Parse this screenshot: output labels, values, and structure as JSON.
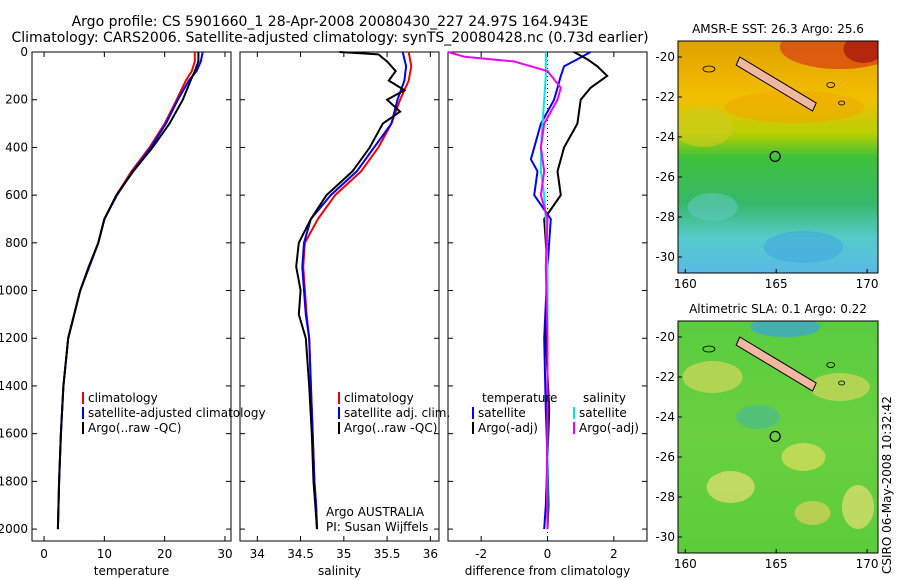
{
  "header": {
    "title_line1": "Argo profile: CS 5901660_1 28-Apr-2008 20080430_227 24.97S 164.943E",
    "title_line2": "Climatology: CARS2006. Satellite-adjusted climatology: synTS_20080428.nc (0.73d earlier)"
  },
  "footer": {
    "stamp": "CSIRO 06-May-2008 10:32:42"
  },
  "colors": {
    "red": "#ee0000",
    "blue": "#0000ee",
    "black": "#000000",
    "cyan": "#00e5ee",
    "magenta": "#ee00ee"
  },
  "chart_data": [
    {
      "type": "line",
      "xlabel": "temperature",
      "ylabel": "",
      "xlim": [
        -2,
        31
      ],
      "ylim": [
        2050,
        0
      ],
      "xticks": [
        0,
        10,
        20,
        30
      ],
      "yticks": [
        0,
        200,
        400,
        600,
        800,
        1000,
        1200,
        1400,
        1600,
        1800,
        2000
      ],
      "legend": {
        "placement": "lower-center"
      },
      "series": [
        {
          "name": "climatology",
          "color": "red",
          "x": [
            25.0,
            25.0,
            24.5,
            23.5,
            22.0,
            20.0,
            17.5,
            14.5,
            12.0,
            10.0,
            9.0,
            7.5,
            6.0,
            5.0,
            4.0,
            3.6,
            3.2,
            2.8,
            2.5,
            2.3
          ],
          "y": [
            0,
            40,
            80,
            120,
            200,
            300,
            400,
            500,
            600,
            700,
            800,
            900,
            1000,
            1100,
            1200,
            1300,
            1400,
            1600,
            1800,
            2000
          ]
        },
        {
          "name": "satellite-adjusted climatology",
          "color": "blue",
          "x": [
            26.3,
            26.0,
            25.3,
            24.0,
            22.2,
            20.2,
            17.7,
            14.7,
            12.1,
            10.0,
            9.0,
            7.5,
            6.0,
            5.0,
            4.0,
            3.6,
            3.2,
            2.8,
            2.5,
            2.3
          ],
          "y": [
            0,
            40,
            80,
            120,
            200,
            300,
            400,
            500,
            600,
            700,
            800,
            900,
            1000,
            1100,
            1200,
            1300,
            1400,
            1600,
            1800,
            2000
          ]
        },
        {
          "name": "Argo(..raw -QC)",
          "color": "black",
          "x": [
            25.6,
            25.6,
            25.0,
            24.3,
            23.0,
            20.8,
            18.0,
            14.8,
            12.0,
            10.0,
            9.0,
            7.4,
            6.0,
            5.0,
            4.0,
            3.6,
            3.2,
            2.8,
            2.5,
            2.3
          ],
          "y": [
            0,
            40,
            80,
            120,
            200,
            300,
            400,
            500,
            600,
            700,
            800,
            900,
            1000,
            1100,
            1200,
            1300,
            1400,
            1600,
            1800,
            2000
          ]
        }
      ]
    },
    {
      "type": "line",
      "xlabel": "salinity",
      "ylabel": "",
      "xlim": [
        33.8,
        36.1
      ],
      "ylim": [
        2050,
        0
      ],
      "xticks": [
        34,
        34.5,
        35,
        35.5,
        36
      ],
      "legend": {
        "placement": "lower-right"
      },
      "annotations": [
        "Argo AUSTRALIA",
        "PI: Susan Wijffels"
      ],
      "series": [
        {
          "name": "climatology",
          "color": "red",
          "x": [
            35.75,
            35.78,
            35.75,
            35.65,
            35.55,
            35.4,
            35.2,
            34.9,
            34.7,
            34.55,
            34.53,
            34.55,
            34.57,
            34.6,
            34.62,
            34.64,
            34.66,
            34.68,
            34.69
          ],
          "y": [
            0,
            60,
            120,
            200,
            300,
            400,
            500,
            600,
            700,
            800,
            900,
            1000,
            1100,
            1200,
            1400,
            1600,
            1800,
            1900,
            2000
          ]
        },
        {
          "name": "satellite adj. clim.",
          "color": "blue",
          "x": [
            35.68,
            35.72,
            35.7,
            35.62,
            35.55,
            35.35,
            35.15,
            34.85,
            34.62,
            34.54,
            34.52,
            34.54,
            34.56,
            34.6,
            34.62,
            34.64,
            34.66,
            34.68,
            34.69
          ],
          "y": [
            0,
            60,
            120,
            200,
            300,
            400,
            500,
            600,
            700,
            800,
            900,
            1000,
            1100,
            1200,
            1400,
            1600,
            1800,
            1900,
            2000
          ]
        },
        {
          "name": "Argo(..raw -QC)",
          "color": "black",
          "x": [
            34.95,
            35.4,
            35.5,
            35.6,
            35.52,
            35.7,
            35.5,
            35.65,
            35.45,
            35.3,
            35.1,
            34.8,
            34.62,
            34.48,
            34.45,
            34.5,
            34.48,
            34.56,
            34.6,
            34.63,
            34.65,
            34.67,
            34.69
          ],
          "y": [
            0,
            10,
            40,
            80,
            120,
            160,
            200,
            250,
            300,
            400,
            500,
            600,
            700,
            800,
            900,
            1000,
            1100,
            1200,
            1400,
            1600,
            1800,
            1900,
            2000
          ]
        }
      ]
    },
    {
      "type": "line",
      "xlabel": "difference from climatology",
      "ylabel": "",
      "xlim": [
        -3,
        3
      ],
      "ylim": [
        2050,
        0
      ],
      "xticks": [
        -2,
        0,
        2
      ],
      "legend": {
        "placement": "lower-center",
        "group_titles": [
          "temperature",
          "salinity"
        ]
      },
      "series": [
        {
          "name": "satellite",
          "group": "temperature",
          "color": "blue",
          "x": [
            1.3,
            0.9,
            0.5,
            0.4,
            0.3,
            0.2,
            -0.2,
            -0.5,
            -0.3,
            -0.4,
            0.1,
            0.0,
            -0.1,
            -0.05,
            0.0,
            -0.05,
            -0.1
          ],
          "y": [
            0,
            30,
            60,
            100,
            150,
            200,
            300,
            450,
            500,
            600,
            700,
            900,
            1200,
            1500,
            1700,
            1900,
            2000
          ]
        },
        {
          "name": "Argo(-adj)",
          "group": "temperature",
          "color": "black",
          "x": [
            0.8,
            1.2,
            1.5,
            1.8,
            1.3,
            1.0,
            0.9,
            0.5,
            0.3,
            0.4,
            -0.1,
            0.0,
            -0.05,
            0.05,
            0.0,
            0.03,
            0.0
          ],
          "y": [
            0,
            30,
            60,
            100,
            150,
            200,
            300,
            400,
            500,
            600,
            700,
            900,
            1200,
            1500,
            1700,
            1900,
            2000
          ]
        },
        {
          "name": "satellite",
          "group": "salinity",
          "color": "cyan",
          "x": [
            -0.05,
            -0.05,
            -0.1,
            -0.15,
            -0.2,
            -0.2,
            -0.15,
            -0.1,
            -0.05,
            0.0,
            0.0,
            0.0,
            0.0,
            0.0
          ],
          "y": [
            0,
            100,
            200,
            300,
            400,
            500,
            550,
            600,
            700,
            900,
            1200,
            1500,
            1800,
            2000
          ]
        },
        {
          "name": "Argo(-adj)",
          "group": "salinity",
          "color": "magenta",
          "x": [
            -3.0,
            -2.5,
            -1.0,
            0.0,
            0.4,
            0.3,
            -0.1,
            -0.2,
            -0.1,
            -0.2,
            0.0,
            -0.05,
            0.0,
            0.0,
            -0.02,
            0.0
          ],
          "y": [
            0,
            20,
            40,
            80,
            150,
            200,
            300,
            400,
            500,
            600,
            700,
            900,
            1200,
            1500,
            1800,
            2000
          ]
        }
      ]
    },
    {
      "type": "heatmap",
      "title": "AMSR-E SST: 26.3 Argo: 25.6",
      "xlim": [
        159.6,
        170.6
      ],
      "ylim": [
        -30.8,
        -19.2
      ],
      "xticks": [
        160,
        165,
        170
      ],
      "yticks": [
        -20,
        -22,
        -24,
        -26,
        -28,
        -30
      ],
      "marker": {
        "lon": 164.943,
        "lat": -24.97
      }
    },
    {
      "type": "heatmap",
      "title": "Altimetric SLA: 0.1 Argo: 0.22",
      "xlim": [
        159.6,
        170.6
      ],
      "ylim": [
        -30.8,
        -19.2
      ],
      "xticks": [
        160,
        165,
        170
      ],
      "yticks": [
        -20,
        -22,
        -24,
        -26,
        -28,
        -30
      ],
      "marker": {
        "lon": 164.943,
        "lat": -24.97
      }
    }
  ]
}
